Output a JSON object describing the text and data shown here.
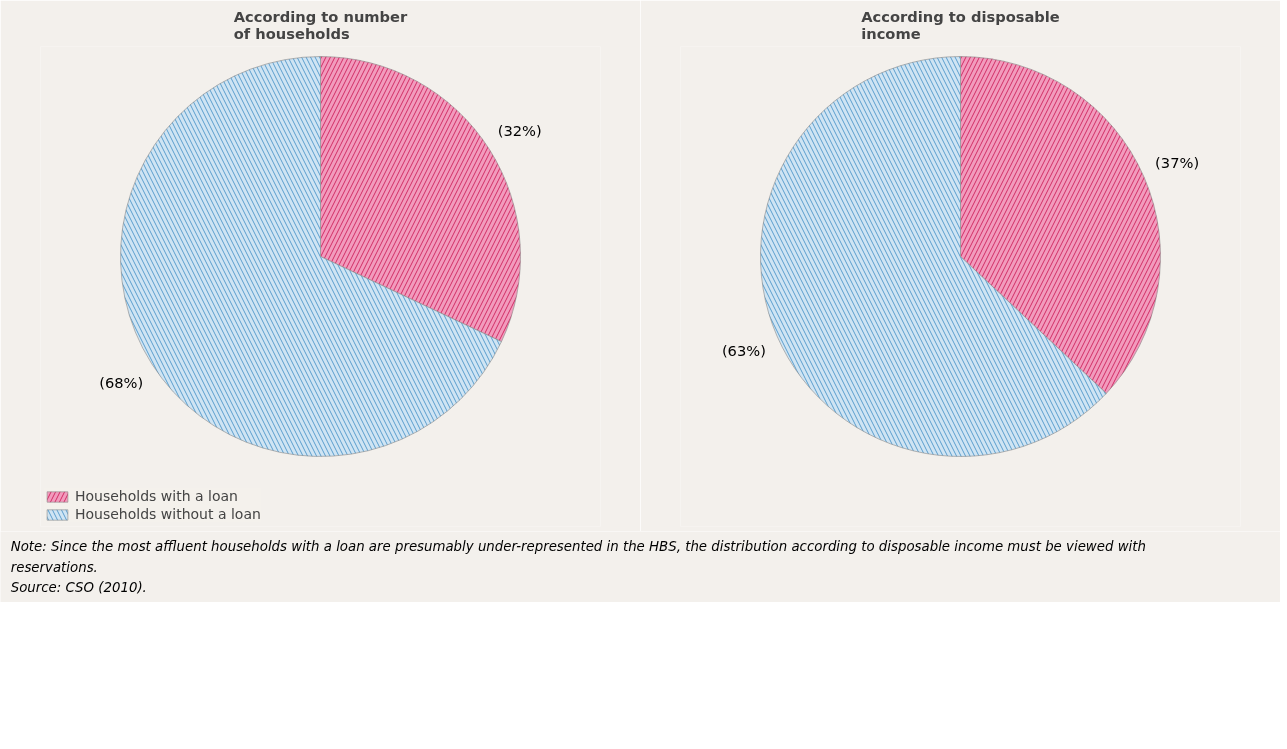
{
  "chart_data": [
    {
      "type": "pie",
      "title": "According to number\nof households",
      "categories": [
        "Households with a loan",
        "Households without a loan"
      ],
      "values": [
        32,
        68
      ],
      "colors": [
        "#f29bbd",
        "#cfe4f3"
      ],
      "value_labels": [
        "(32%)",
        "(68%)"
      ],
      "legend": "bottom",
      "annotations": [
        "Note: Since the most affluent households with a loan are presumably under-represented in the HBS, the distribution according to disposable income must be viewed with reservations.",
        "Source: CSO (2010)."
      ]
    },
    {
      "type": "pie",
      "title": "According to disposable\nincome",
      "categories": [
        null,
        null
      ],
      "values": [
        37,
        63
      ],
      "colors": [
        "#f29bbd",
        "#cfe4f3"
      ],
      "value_labels": [
        "(37%)",
        "(63%)"
      ]
    }
  ]
}
